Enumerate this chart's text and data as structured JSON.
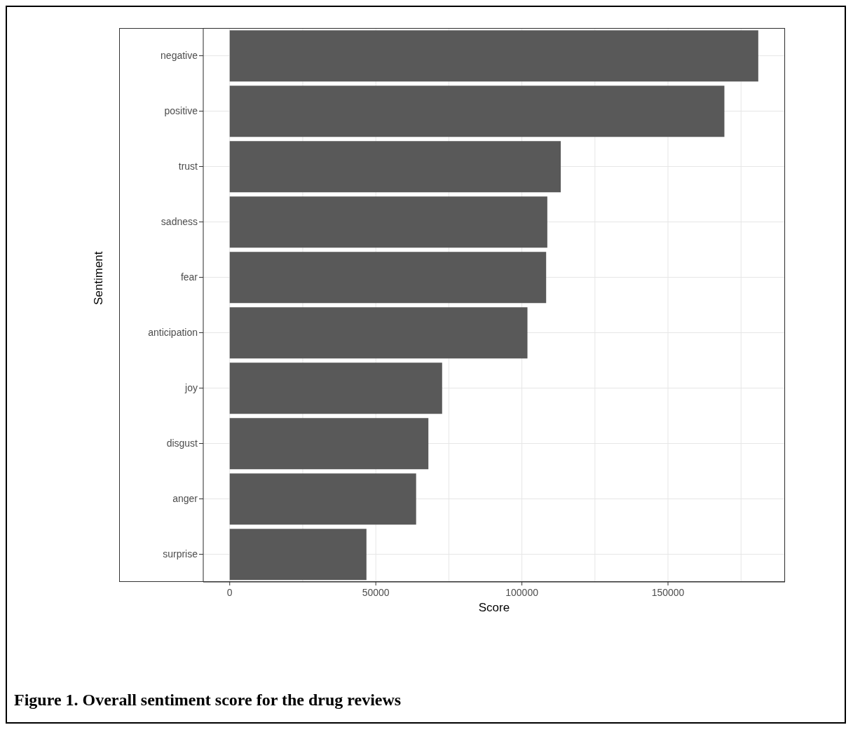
{
  "chart_data": {
    "type": "bar",
    "orientation": "horizontal",
    "xlabel": "Score",
    "ylabel": "Sentiment",
    "categories": [
      "negative",
      "positive",
      "trust",
      "sadness",
      "fear",
      "anticipation",
      "joy",
      "disgust",
      "anger",
      "surprise"
    ],
    "values": [
      180900,
      169300,
      113300,
      108700,
      108300,
      101900,
      72700,
      68000,
      63800,
      46800
    ],
    "color": "#595959",
    "xlim": [
      -9050,
      190050
    ],
    "xticks": [
      0,
      {
        "value": 25000,
        "label": null
      },
      50000,
      {
        "value": 75000,
        "label": null
      },
      100000,
      {
        "value": 125000,
        "label": null
      },
      150000,
      {
        "value": 175000,
        "label": null
      }
    ],
    "grid": true,
    "annotations": [
      "Figure 1. Overall sentiment score for the drug reviews"
    ]
  }
}
